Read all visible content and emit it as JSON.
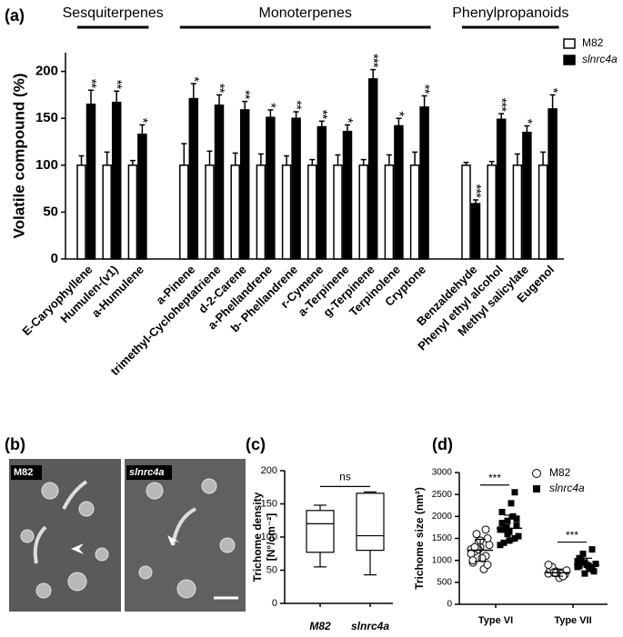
{
  "chart_data": [
    {
      "type": "bar",
      "panel_label": "(a)",
      "y_label": "Volatile compound (%)",
      "groups": [
        "Sesquiterpenes",
        "Monoterpenes",
        "Phenylpropanoids"
      ],
      "categories": [
        "E-Caryophyllene",
        "Humulen-(v1)",
        "a-Humulene",
        null,
        "a-Pinene",
        "trimethyl-Cycloheptatriene",
        "d-2-Carene",
        "a-Phellandrene",
        "b- Phellandrene",
        "r-Cymene",
        "a-Terpinene",
        "g-Terpinene",
        "Terpinolene",
        "Cryptone",
        null,
        "Benzaldehyde",
        "Phenyl ethyl alcohol",
        "Methyl salicylate",
        "Eugenol"
      ],
      "series": [
        {
          "name": "M82",
          "color": "#ffffff",
          "values": [
            100,
            100,
            100,
            null,
            100,
            100,
            100,
            100,
            100,
            100,
            100,
            100,
            100,
            100,
            null,
            100,
            100,
            100,
            100
          ],
          "errors": [
            10,
            14,
            5,
            null,
            23,
            15,
            13,
            12,
            10,
            6,
            11,
            6,
            11,
            14,
            null,
            3,
            4,
            12,
            14
          ]
        },
        {
          "name": "slnrc4a",
          "color": "#000000",
          "values": [
            165,
            167,
            133,
            null,
            171,
            164,
            159,
            151,
            150,
            141,
            136,
            192,
            142,
            162,
            null,
            59,
            149,
            135,
            160
          ],
          "errors": [
            15,
            12,
            10,
            null,
            16,
            11,
            9,
            8,
            7,
            6,
            7,
            10,
            8,
            12,
            null,
            4,
            6,
            7,
            15
          ],
          "significance": [
            "**",
            "**",
            "*",
            null,
            "*",
            "**",
            "**",
            "*",
            "**",
            "**",
            "*",
            "***",
            "*",
            "**",
            null,
            "***",
            "***",
            "*",
            "*"
          ]
        }
      ],
      "ylim": [
        0,
        220
      ],
      "yticks": [
        0,
        50,
        100,
        150,
        200
      ],
      "legend": "top-right"
    },
    {
      "type": "box",
      "panel_label": "(c)",
      "y_label": [
        "Trichome density",
        "[N°/cm⁻²]"
      ],
      "categories": [
        "M82",
        "slnrc4a"
      ],
      "boxes": [
        {
          "min": 55,
          "q1": 77,
          "median": 120,
          "q3": 140,
          "max": 148
        },
        {
          "min": 43,
          "q1": 80,
          "median": 102,
          "q3": 166,
          "max": 168
        }
      ],
      "annotation": "ns",
      "ylim": [
        0,
        200
      ],
      "yticks": [
        0,
        50,
        100,
        150,
        200
      ]
    },
    {
      "type": "strip",
      "panel_label": "(d)",
      "y_label": "Trichome size (nm²)",
      "categories": [
        "Type VI",
        "Type VII"
      ],
      "series": [
        {
          "name": "M82",
          "marker": "circle",
          "color": "#000000",
          "values": [
            [
              1250,
              1400,
              1100,
              950,
              1300,
              1500,
              1200,
              1050,
              1350,
              1600,
              800,
              1150,
              1250,
              1700,
              1000,
              1450,
              900,
              1300
            ],
            [
              700,
              750,
              650,
              800,
              720,
              680,
              850,
              600,
              770,
              730,
              690,
              900,
              710,
              640
            ]
          ],
          "means": [
            1230,
            720
          ],
          "sds": [
            250,
            80
          ]
        },
        {
          "name": "slnrc4a",
          "marker": "square",
          "color": "#000000",
          "values": [
            [
              1700,
              1900,
              1500,
              2100,
              1650,
              1800,
              1400,
              2300,
              1550,
              1750,
              2000,
              1350,
              1600,
              2550,
              1850,
              1450,
              1950,
              1700
            ],
            [
              850,
              950,
              800,
              1050,
              900,
              750,
              1000,
              880,
              920,
              1150,
              820,
              980,
              700,
              1250,
              870
            ]
          ],
          "means": [
            1730,
            900
          ],
          "sds": [
            300,
            150
          ]
        }
      ],
      "annotations": [
        "***",
        "***"
      ],
      "ylim": [
        0,
        3000
      ],
      "yticks": [
        0,
        500,
        1000,
        1500,
        2000,
        2500,
        3000
      ],
      "legend": "top-right"
    }
  ],
  "figure_b": {
    "panel_label": "(b)",
    "labels": [
      "M82",
      "slnrc4a"
    ]
  }
}
